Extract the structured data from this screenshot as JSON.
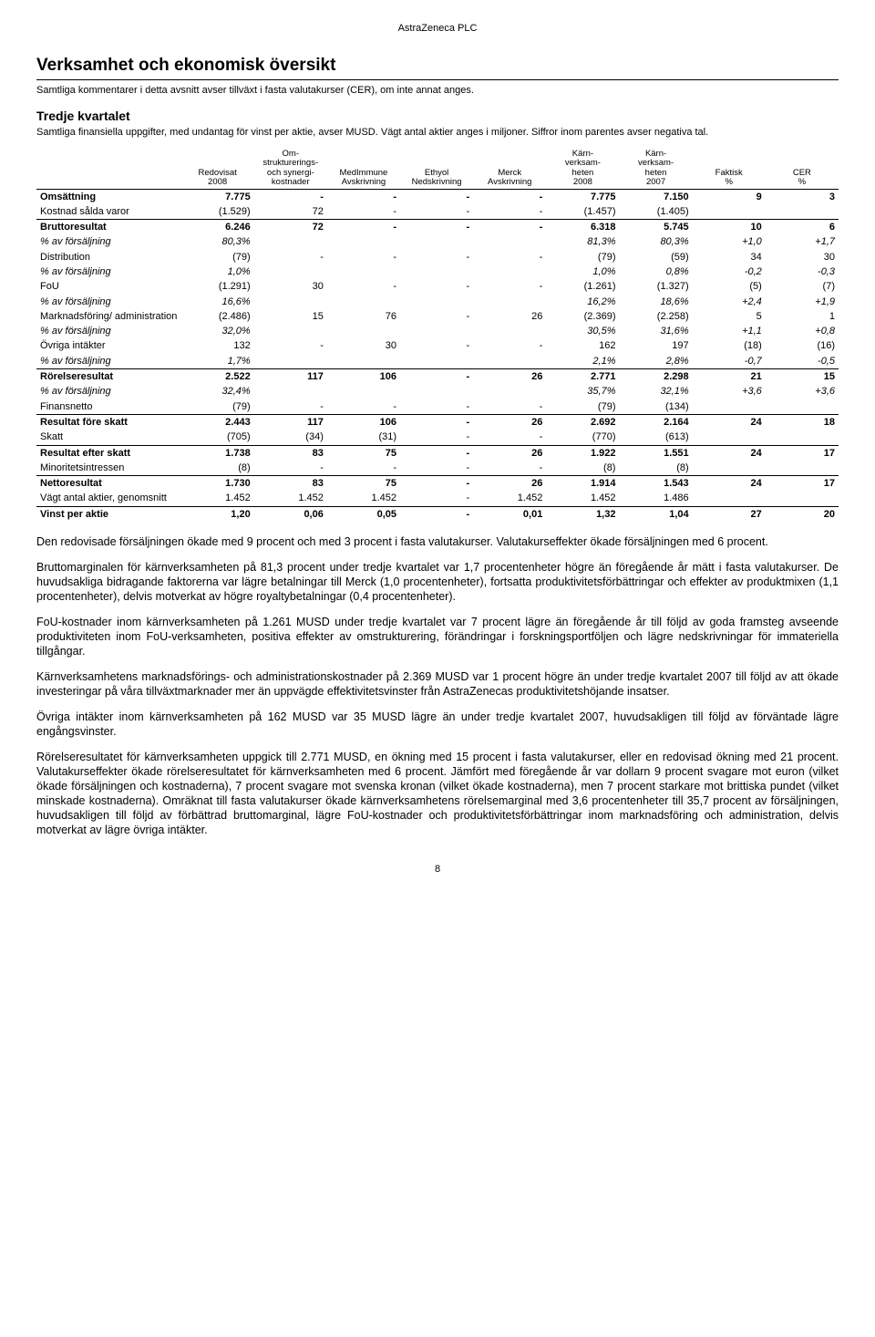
{
  "company": "AstraZeneca PLC",
  "title": "Verksamhet och ekonomisk översikt",
  "subtitle": "Samtliga kommentarer i detta avsnitt avser tillväxt i fasta valutakurser (CER), om inte annat anges.",
  "section_heading": "Tredje kvartalet",
  "section_lead": "Samtliga finansiella uppgifter, med undantag för vinst per aktie, avser MUSD. Vägt antal aktier anges i miljoner. Siffror inom parentes avser negativa tal.",
  "table": {
    "columns": [
      "",
      "Redovisat\n2008",
      "Om-\nstrukturerings-\noch synergi-\nkostnader",
      "MedImmune\nAvskrivning",
      "Ethyol\nNedskrivning",
      "Merck\nAvskrivning",
      "Kärn-\nverksam-\nheten\n2008",
      "Kärn-\nverksam-\nheten\n2007",
      "Faktisk\n%",
      "CER\n%"
    ],
    "rows": [
      {
        "label": "Omsättning",
        "cells": [
          "7.775",
          "-",
          "-",
          "-",
          "-",
          "7.775",
          "7.150",
          "9",
          "3"
        ],
        "bold": true,
        "sep": false,
        "italic": false
      },
      {
        "label": "Kostnad sålda varor",
        "cells": [
          "(1.529)",
          "72",
          "-",
          "-",
          "-",
          "(1.457)",
          "(1.405)",
          "",
          ""
        ],
        "bold": false,
        "sep": false,
        "italic": false
      },
      {
        "label": "Bruttoresultat",
        "cells": [
          "6.246",
          "72",
          "-",
          "-",
          "-",
          "6.318",
          "5.745",
          "10",
          "6"
        ],
        "bold": true,
        "sep": true,
        "italic": false
      },
      {
        "label": "% av försäljning",
        "cells": [
          "80,3%",
          "",
          "",
          "",
          "",
          "81,3%",
          "80,3%",
          "+1,0",
          "+1,7"
        ],
        "bold": false,
        "sep": false,
        "italic": true
      },
      {
        "label": "Distribution",
        "cells": [
          "(79)",
          "-",
          "-",
          "-",
          "-",
          "(79)",
          "(59)",
          "34",
          "30"
        ],
        "bold": false,
        "sep": false,
        "italic": false
      },
      {
        "label": "% av försäljning",
        "cells": [
          "1,0%",
          "",
          "",
          "",
          "",
          "1,0%",
          "0,8%",
          "-0,2",
          "-0,3"
        ],
        "bold": false,
        "sep": false,
        "italic": true
      },
      {
        "label": "FoU",
        "cells": [
          "(1.291)",
          "30",
          "-",
          "-",
          "-",
          "(1.261)",
          "(1.327)",
          "(5)",
          "(7)"
        ],
        "bold": false,
        "sep": false,
        "italic": false
      },
      {
        "label": "% av försäljning",
        "cells": [
          "16,6%",
          "",
          "",
          "",
          "",
          "16,2%",
          "18,6%",
          "+2,4",
          "+1,9"
        ],
        "bold": false,
        "sep": false,
        "italic": true
      },
      {
        "label": "Marknadsföring/ administration",
        "cells": [
          "(2.486)",
          "15",
          "76",
          "-",
          "26",
          "(2.369)",
          "(2.258)",
          "5",
          "1"
        ],
        "bold": false,
        "sep": false,
        "italic": false
      },
      {
        "label": "% av försäljning",
        "cells": [
          "32,0%",
          "",
          "",
          "",
          "",
          "30,5%",
          "31,6%",
          "+1,1",
          "+0,8"
        ],
        "bold": false,
        "sep": false,
        "italic": true
      },
      {
        "label": "Övriga intäkter",
        "cells": [
          "132",
          "-",
          "30",
          "-",
          "-",
          "162",
          "197",
          "(18)",
          "(16)"
        ],
        "bold": false,
        "sep": false,
        "italic": false
      },
      {
        "label": "% av försäljning",
        "cells": [
          "1,7%",
          "",
          "",
          "",
          "",
          "2,1%",
          "2,8%",
          "-0,7",
          "-0,5"
        ],
        "bold": false,
        "sep": false,
        "italic": true
      },
      {
        "label": "Rörelseresultat",
        "cells": [
          "2.522",
          "117",
          "106",
          "-",
          "26",
          "2.771",
          "2.298",
          "21",
          "15"
        ],
        "bold": true,
        "sep": true,
        "italic": false
      },
      {
        "label": "% av försäljning",
        "cells": [
          "32,4%",
          "",
          "",
          "",
          "",
          "35,7%",
          "32,1%",
          "+3,6",
          "+3,6"
        ],
        "bold": false,
        "sep": false,
        "italic": true
      },
      {
        "label": "Finansnetto",
        "cells": [
          "(79)",
          "-",
          "-",
          "-",
          "-",
          "(79)",
          "(134)",
          "",
          ""
        ],
        "bold": false,
        "sep": false,
        "italic": false
      },
      {
        "label": "Resultat före skatt",
        "cells": [
          "2.443",
          "117",
          "106",
          "-",
          "26",
          "2.692",
          "2.164",
          "24",
          "18"
        ],
        "bold": true,
        "sep": true,
        "italic": false
      },
      {
        "label": "Skatt",
        "cells": [
          "(705)",
          "(34)",
          "(31)",
          "-",
          "-",
          "(770)",
          "(613)",
          "",
          ""
        ],
        "bold": false,
        "sep": false,
        "italic": false
      },
      {
        "label": "Resultat efter skatt",
        "cells": [
          "1.738",
          "83",
          "75",
          "-",
          "26",
          "1.922",
          "1.551",
          "24",
          "17"
        ],
        "bold": true,
        "sep": true,
        "italic": false
      },
      {
        "label": "Minoritetsintressen",
        "cells": [
          "(8)",
          "-",
          "-",
          "-",
          "-",
          "(8)",
          "(8)",
          "",
          ""
        ],
        "bold": false,
        "sep": false,
        "italic": false
      },
      {
        "label": "Nettoresultat",
        "cells": [
          "1.730",
          "83",
          "75",
          "-",
          "26",
          "1.914",
          "1.543",
          "24",
          "17"
        ],
        "bold": true,
        "sep": true,
        "italic": false
      },
      {
        "label": "Vägt antal aktier, genomsnitt",
        "cells": [
          "1.452",
          "1.452",
          "1.452",
          "-",
          "1.452",
          "1.452",
          "1.486",
          "",
          ""
        ],
        "bold": false,
        "sep": false,
        "italic": false
      },
      {
        "label": "Vinst per aktie",
        "cells": [
          "1,20",
          "0,06",
          "0,05",
          "-",
          "0,01",
          "1,32",
          "1,04",
          "27",
          "20"
        ],
        "bold": true,
        "sep": true,
        "italic": false
      }
    ]
  },
  "paragraphs": [
    "Den redovisade försäljningen ökade med 9 procent och med 3 procent i fasta valutakurser. Valutakurseffekter ökade försäljningen med 6 procent.",
    "Bruttomarginalen för kärnverksamheten på 81,3 procent under tredje kvartalet var 1,7 procentenheter högre än föregående år mätt i fasta valutakurser. De huvudsakliga bidragande faktorerna var lägre betalningar till Merck (1,0 procentenheter), fortsatta produktivitetsförbättringar och effekter av produktmixen (1,1 procentenheter), delvis motverkat av högre royaltybetalningar (0,4 procentenheter).",
    "FoU-kostnader inom kärnverksamheten på 1.261 MUSD under tredje kvartalet var 7 procent lägre än föregående år till följd av goda framsteg avseende produktiviteten inom FoU-verksamheten, positiva effekter av omstrukturering, förändringar i forskningsportföljen och lägre nedskrivningar för immateriella tillgångar.",
    "Kärnverksamhetens marknadsförings- och administrationskostnader på 2.369 MUSD var 1 procent högre än under tredje kvartalet 2007 till följd av att ökade investeringar på våra tillväxtmarknader mer än uppvägde effektivitetsvinster från AstraZenecas produktivitetshöjande insatser.",
    "Övriga intäkter inom kärnverksamheten på 162 MUSD var 35 MUSD lägre än under tredje kvartalet 2007, huvudsakligen till följd av förväntade lägre engångsvinster.",
    "Rörelseresultatet för kärnverksamheten uppgick till 2.771 MUSD, en ökning med 15 procent i fasta valutakurser, eller en redovisad ökning med 21 procent. Valutakurseffekter ökade rörelseresultatet för kärnverksamheten med 6 procent. Jämfört med föregående år var dollarn 9 procent svagare mot euron (vilket ökade försäljningen och kostnaderna), 7 procent svagare mot svenska kronan (vilket ökade kostnaderna), men 7 procent starkare mot brittiska pundet (vilket minskade kostnaderna). Omräknat till fasta valutakurser ökade kärnverksamhetens rörelsemarginal med 3,6 procentenheter till 35,7 procent av försäljningen, huvudsakligen till följd av förbättrad bruttomarginal, lägre FoU-kostnader och produktivitetsförbättringar inom marknadsföring och administration, delvis motverkat av lägre övriga intäkter."
  ],
  "page_number": "8"
}
